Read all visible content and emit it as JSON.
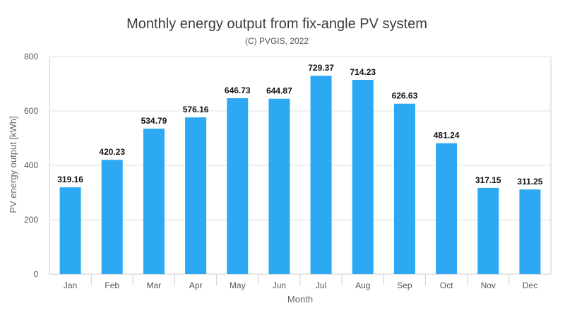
{
  "chart_data": {
    "type": "bar",
    "title": "Monthly energy output from fix-angle PV system",
    "subtitle": "(C) PVGIS, 2022",
    "xlabel": "Month",
    "ylabel": "PV energy output [kWh]",
    "categories": [
      "Jan",
      "Feb",
      "Mar",
      "Apr",
      "May",
      "Jun",
      "Jul",
      "Aug",
      "Sep",
      "Oct",
      "Nov",
      "Dec"
    ],
    "values": [
      319.16,
      420.23,
      534.79,
      576.16,
      646.73,
      644.87,
      729.37,
      714.23,
      626.63,
      481.24,
      317.15,
      311.25
    ],
    "data_labels": [
      "319.16",
      "420.23",
      "534.79",
      "576.16",
      "646.73",
      "644.87",
      "729.37",
      "714.23",
      "626.63",
      "481.24",
      "317.15",
      "311.25"
    ],
    "ylim": [
      0,
      800
    ],
    "yticks": [
      0,
      200,
      400,
      600,
      800
    ],
    "ytick_labels": [
      "0",
      "200",
      "400",
      "600",
      "800"
    ],
    "grid": true,
    "legend": "none",
    "bar_color": "#2da8f2"
  }
}
